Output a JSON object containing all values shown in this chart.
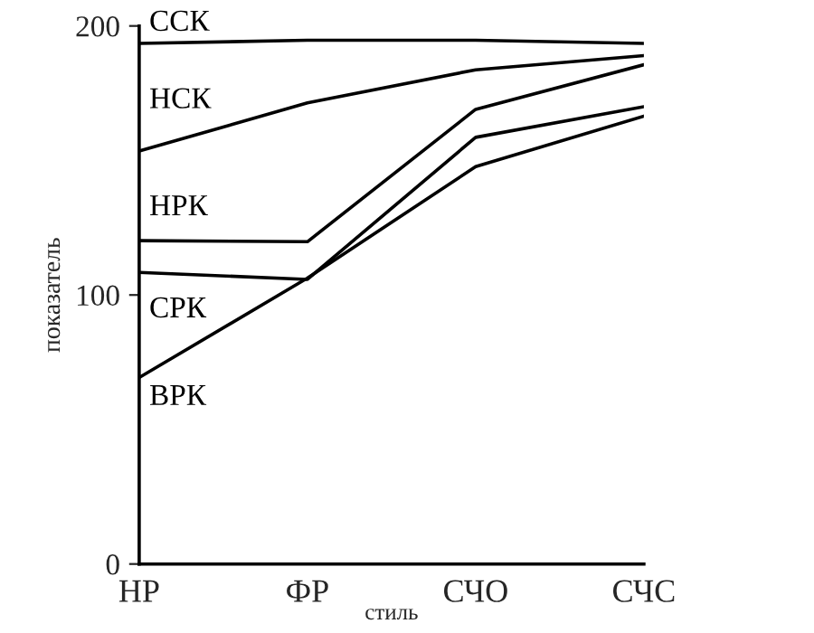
{
  "chart_data": {
    "type": "line",
    "xlabel": "стиль",
    "ylabel": "показатель",
    "categories": [
      "НР",
      "ФР",
      "СЧО",
      "СЧС"
    ],
    "series": [
      {
        "name": "ССК",
        "color": "#000000",
        "values": [
          193.5,
          194.7,
          194.7,
          193.5
        ]
      },
      {
        "name": "НСК",
        "color": "#000000",
        "values": [
          153.5,
          171.4,
          183.7,
          189
        ]
      },
      {
        "name": "НРК",
        "color": "#000000",
        "values": [
          120.2,
          119.8,
          169,
          185.6
        ]
      },
      {
        "name": "СРК",
        "color": "#000000",
        "values": [
          108.4,
          105.8,
          158.6,
          170
        ]
      },
      {
        "name": "ВРК",
        "color": "#000000",
        "values": [
          69.3,
          106.3,
          147.7,
          166.5
        ]
      }
    ],
    "ylim": [
      0,
      200
    ],
    "yticks": [
      0,
      100,
      200
    ],
    "grid": false,
    "legend": false,
    "marker": "none",
    "line_style": "solid"
  }
}
